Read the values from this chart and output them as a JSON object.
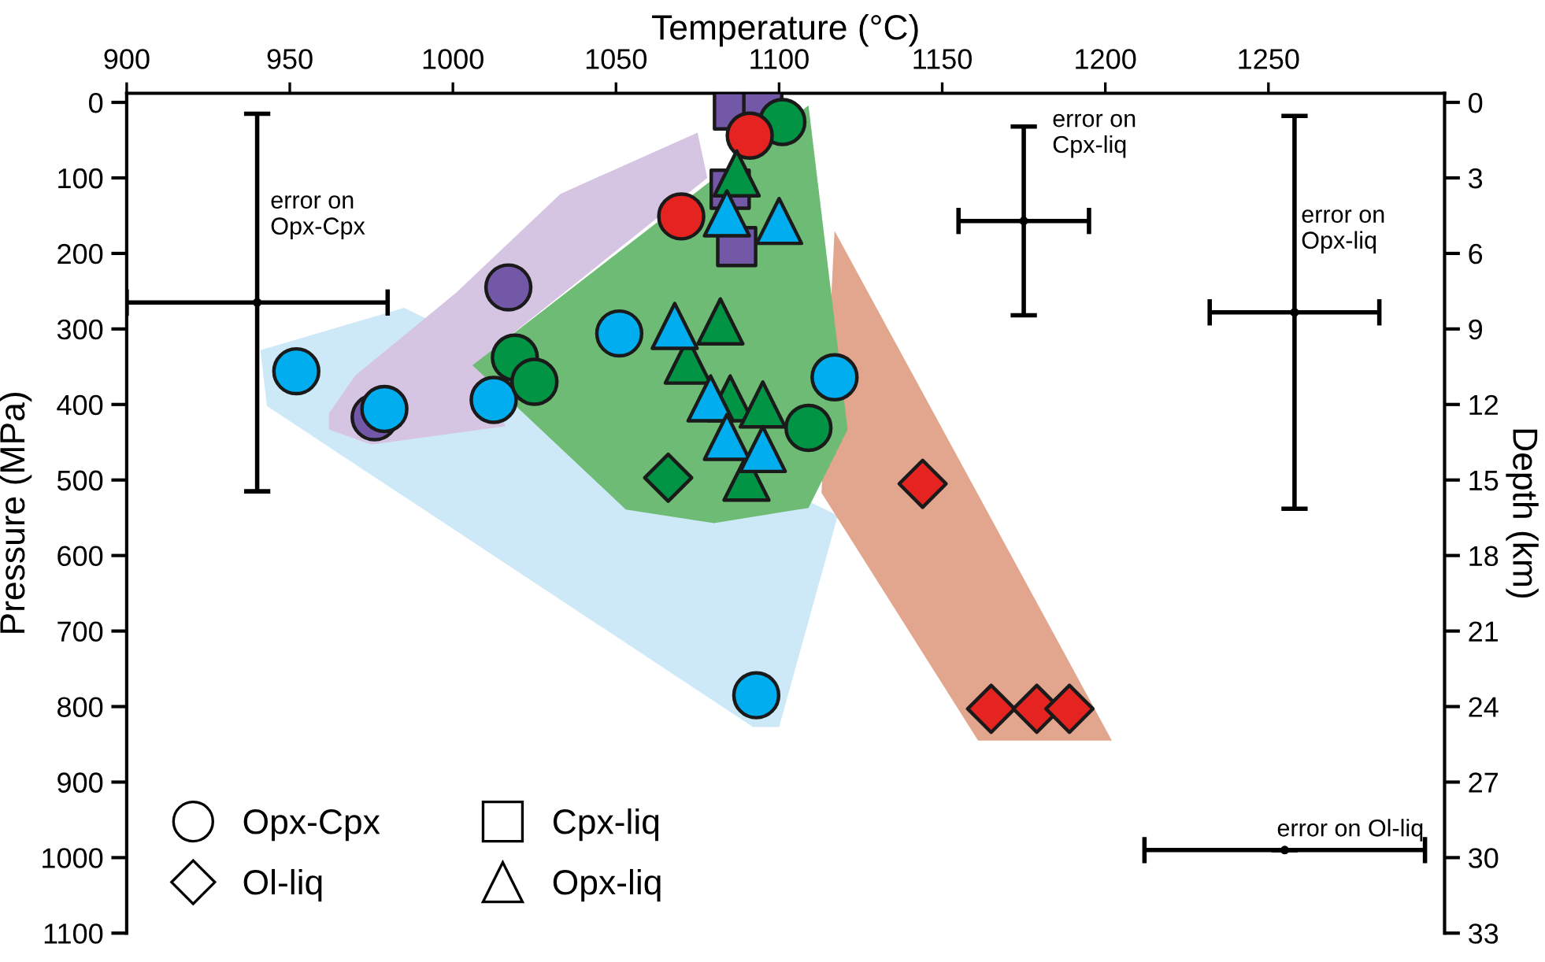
{
  "chart_data": {
    "type": "scatter",
    "xlabel": "Temperature (°C)",
    "ylabel": "Pressure (MPa)",
    "y2label": "Depth (km)",
    "xlim": [
      900,
      1304
    ],
    "xticks": [
      900,
      950,
      1000,
      1050,
      1100,
      1150,
      1200,
      1250
    ],
    "ylim": [
      1100,
      -12
    ],
    "yticks": [
      0,
      100,
      200,
      300,
      400,
      500,
      600,
      700,
      800,
      900,
      1000,
      1100
    ],
    "y2lim": [
      33,
      -0.36
    ],
    "y2ticks": [
      0,
      3,
      6,
      9,
      12,
      15,
      18,
      21,
      24,
      27,
      30,
      33
    ],
    "grid": false,
    "series": [
      {
        "type": "area",
        "color": "#cde8f6",
        "x": [
          941,
          985,
          1118,
          1100,
          1092,
          943
        ],
        "values": [
          328,
          272,
          547,
          827,
          827,
          402
        ]
      },
      {
        "type": "area",
        "color": "#d5c5e2",
        "x": [
          962,
          970,
          1001,
          1033,
          1075,
          1078,
          1010,
          1016,
          975,
          962
        ],
        "values": [
          412,
          362,
          252,
          121,
          40,
          100,
          335,
          429,
          453,
          433
        ]
      },
      {
        "type": "area",
        "color": "#e2a68e",
        "x": [
          1117,
          1202,
          1161,
          1113
        ],
        "values": [
          170,
          845,
          845,
          517
        ]
      },
      {
        "type": "area",
        "color": "#6dbb74",
        "x": [
          1006,
          1109,
          1121,
          1109,
          1080,
          1053
        ],
        "values": [
          348,
          4,
          433,
          537,
          557,
          539
        ]
      },
      {
        "color": "#000000",
        "x": [
          940,
          1175,
          1258,
          1255
        ],
        "values": [
          265,
          157,
          278,
          990
        ],
        "xerrors": [
          40,
          20,
          26,
          43
        ],
        "errors": [
          250,
          125,
          260,
          null
        ]
      },
      {
        "marker": "circle",
        "x": [
          1101,
          1091,
          1070,
          1017,
          976,
          1051,
          1012.5,
          952,
          979,
          1117,
          1093,
          1019,
          1025,
          1109
        ],
        "values": [
          26,
          44,
          151,
          245,
          417,
          306,
          394,
          356,
          406,
          364,
          785,
          338,
          370,
          431
        ],
        "colors": [
          "#009444",
          "#e52421",
          "#e52421",
          "#7358a8",
          "#7358a8",
          "#00aeef",
          "#00aeef",
          "#00aeef",
          "#00aeef",
          "#00aeef",
          "#00aeef",
          "#009444",
          "#009444",
          "#009444"
        ]
      },
      {
        "marker": "diamond",
        "x": [
          1066,
          1144,
          1165,
          1179,
          1189
        ],
        "values": [
          497,
          505,
          803,
          803,
          803
        ],
        "colors": [
          "#009444",
          "#e52421",
          "#e52421",
          "#e52421",
          "#e52421"
        ]
      },
      {
        "marker": "square",
        "x": [
          1086,
          1095,
          1085,
          1087
        ],
        "values": [
          10,
          10,
          115,
          191
        ],
        "colors": [
          "#7358a8",
          "#7358a8",
          "#7358a8",
          "#7358a8"
        ]
      },
      {
        "marker": "triangle",
        "x": [
          1087,
          1082,
          1072,
          1085,
          1095,
          1090,
          1084,
          1100,
          1068,
          1079,
          1084,
          1095
        ],
        "values": [
          94,
          290,
          342,
          392,
          400,
          497,
          147,
          157,
          296,
          392,
          443,
          459
        ],
        "colors": [
          "#009444",
          "#009444",
          "#009444",
          "#009444",
          "#009444",
          "#009444",
          "#00aeef",
          "#00aeef",
          "#00aeef",
          "#00aeef",
          "#00aeef",
          "#00aeef"
        ]
      }
    ],
    "annotations": [
      "error on\nOpx-Cpx",
      "error on\nCpx-liq",
      "error on\nOpx-liq",
      "error on Ol-liq",
      "Opx-Cpx",
      "Ol-liq",
      "Cpx-liq",
      "Opx-liq"
    ]
  }
}
